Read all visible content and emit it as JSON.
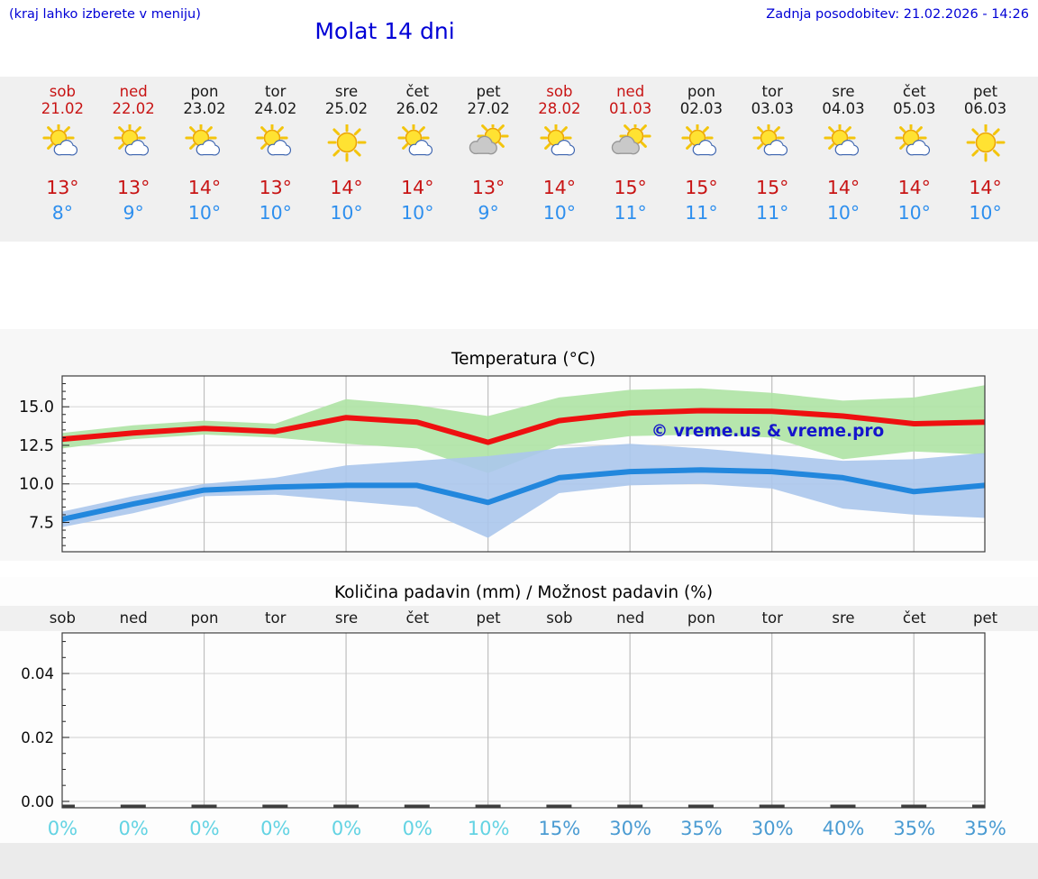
{
  "header": {
    "hint": "(kraj lahko izberete v meniju)",
    "title": "Molat 14 dni",
    "updated": "Zadnja posodobitev: 21.02.2026 - 14:26"
  },
  "colors": {
    "header_blue": "#0000d6",
    "weekend_red": "#c81414",
    "weekday_black": "#1a1a1a",
    "high_temp_red": "#c81414",
    "low_temp_blue": "#2e8fee",
    "strip_bg": "#f0f0f0",
    "max_line": "#ee1010",
    "min_line": "#2287dd",
    "max_band": "#aee3a4",
    "min_band": "#abc6ec",
    "watermark_blue": "#1515cc",
    "pct_cyan": "#63d3e3",
    "pct_blue": "#4a9bd2"
  },
  "forecast": {
    "days": [
      {
        "name": "sob",
        "date": "21.02",
        "weekend": true,
        "icon": "sun-small-cloud",
        "high": "13°",
        "low": "8°"
      },
      {
        "name": "ned",
        "date": "22.02",
        "weekend": true,
        "icon": "sun-small-cloud",
        "high": "13°",
        "low": "9°"
      },
      {
        "name": "pon",
        "date": "23.02",
        "weekend": false,
        "icon": "sun-small-cloud",
        "high": "14°",
        "low": "10°"
      },
      {
        "name": "tor",
        "date": "24.02",
        "weekend": false,
        "icon": "sun-small-cloud",
        "high": "13°",
        "low": "10°"
      },
      {
        "name": "sre",
        "date": "25.02",
        "weekend": false,
        "icon": "sun",
        "high": "14°",
        "low": "10°"
      },
      {
        "name": "čet",
        "date": "26.02",
        "weekend": false,
        "icon": "sun-small-cloud",
        "high": "14°",
        "low": "10°"
      },
      {
        "name": "pet",
        "date": "27.02",
        "weekend": false,
        "icon": "sun-gray-cloud",
        "high": "13°",
        "low": "9°"
      },
      {
        "name": "sob",
        "date": "28.02",
        "weekend": true,
        "icon": "sun-small-cloud",
        "high": "14°",
        "low": "10°"
      },
      {
        "name": "ned",
        "date": "01.03",
        "weekend": true,
        "icon": "sun-gray-cloud",
        "high": "15°",
        "low": "11°"
      },
      {
        "name": "pon",
        "date": "02.03",
        "weekend": false,
        "icon": "sun-small-cloud",
        "high": "15°",
        "low": "11°"
      },
      {
        "name": "tor",
        "date": "03.03",
        "weekend": false,
        "icon": "sun-small-cloud",
        "high": "15°",
        "low": "11°"
      },
      {
        "name": "sre",
        "date": "04.03",
        "weekend": false,
        "icon": "sun-small-cloud",
        "high": "14°",
        "low": "10°"
      },
      {
        "name": "čet",
        "date": "05.03",
        "weekend": false,
        "icon": "sun-small-cloud",
        "high": "14°",
        "low": "10°"
      },
      {
        "name": "pet",
        "date": "06.03",
        "weekend": false,
        "icon": "sun",
        "high": "14°",
        "low": "10°"
      }
    ]
  },
  "chart_data": [
    {
      "type": "line",
      "title": "Temperatura (°C)",
      "watermark": "© vreme.us & vreme.pro",
      "x_labels": [
        "sob",
        "ned",
        "pon",
        "tor",
        "sre",
        "čet",
        "pet",
        "sob",
        "ned",
        "pon",
        "tor",
        "sre",
        "čet",
        "pet"
      ],
      "ylim": [
        5.6,
        17.0
      ],
      "yticks": [
        7.5,
        10.0,
        12.5,
        15.0
      ],
      "grid": true,
      "legend_position": "none",
      "series": [
        {
          "name": "max temperature",
          "color": "#ee1010",
          "values": [
            12.9,
            13.3,
            13.6,
            13.4,
            14.3,
            14.0,
            12.7,
            14.1,
            14.6,
            14.75,
            14.7,
            14.4,
            13.9,
            14.0
          ]
        },
        {
          "name": "min temperature",
          "color": "#2287dd",
          "values": [
            7.7,
            8.7,
            9.6,
            9.8,
            9.9,
            9.9,
            8.8,
            10.4,
            10.8,
            10.9,
            10.8,
            10.4,
            9.5,
            9.9
          ]
        }
      ],
      "bands": [
        {
          "name": "max range",
          "color": "#aee3a4",
          "upper": [
            13.3,
            13.8,
            14.1,
            13.9,
            15.5,
            15.1,
            14.4,
            15.6,
            16.1,
            16.2,
            15.9,
            15.4,
            15.6,
            16.4
          ],
          "lower": [
            12.3,
            12.9,
            13.2,
            13.0,
            12.6,
            12.3,
            10.7,
            12.5,
            13.1,
            13.2,
            13.0,
            11.6,
            12.1,
            11.9
          ]
        },
        {
          "name": "min range",
          "color": "#abc6ec",
          "upper": [
            8.2,
            9.2,
            10.0,
            10.4,
            11.2,
            11.5,
            11.8,
            12.3,
            12.6,
            12.3,
            11.9,
            11.5,
            11.6,
            12.0
          ],
          "lower": [
            7.2,
            8.1,
            9.2,
            9.3,
            8.9,
            8.5,
            6.5,
            9.4,
            9.9,
            10.0,
            9.7,
            8.4,
            8.0,
            7.8
          ]
        }
      ]
    },
    {
      "type": "bar",
      "title": "Količina padavin (mm) / Možnost padavin (%)",
      "x_labels": [
        "sob",
        "ned",
        "pon",
        "tor",
        "sre",
        "čet",
        "pet",
        "sob",
        "ned",
        "pon",
        "tor",
        "sre",
        "čet",
        "pet"
      ],
      "ylim": [
        -0.002,
        0.0527
      ],
      "yticks": [
        0.0,
        0.02,
        0.04
      ],
      "grid": true,
      "values": [
        0,
        0,
        0,
        0,
        0,
        0,
        0,
        0,
        0,
        0,
        0,
        0,
        0,
        0
      ],
      "unit": "mm",
      "probabilities": [
        {
          "label": "0%",
          "color": "#63d3e3"
        },
        {
          "label": "0%",
          "color": "#63d3e3"
        },
        {
          "label": "0%",
          "color": "#63d3e3"
        },
        {
          "label": "0%",
          "color": "#63d3e3"
        },
        {
          "label": "0%",
          "color": "#63d3e3"
        },
        {
          "label": "0%",
          "color": "#63d3e3"
        },
        {
          "label": "10%",
          "color": "#63d3e3"
        },
        {
          "label": "15%",
          "color": "#4a9bd2"
        },
        {
          "label": "30%",
          "color": "#4a9bd2"
        },
        {
          "label": "35%",
          "color": "#4a9bd2"
        },
        {
          "label": "30%",
          "color": "#4a9bd2"
        },
        {
          "label": "40%",
          "color": "#4a9bd2"
        },
        {
          "label": "35%",
          "color": "#4a9bd2"
        },
        {
          "label": "35%",
          "color": "#4a9bd2"
        }
      ]
    }
  ]
}
